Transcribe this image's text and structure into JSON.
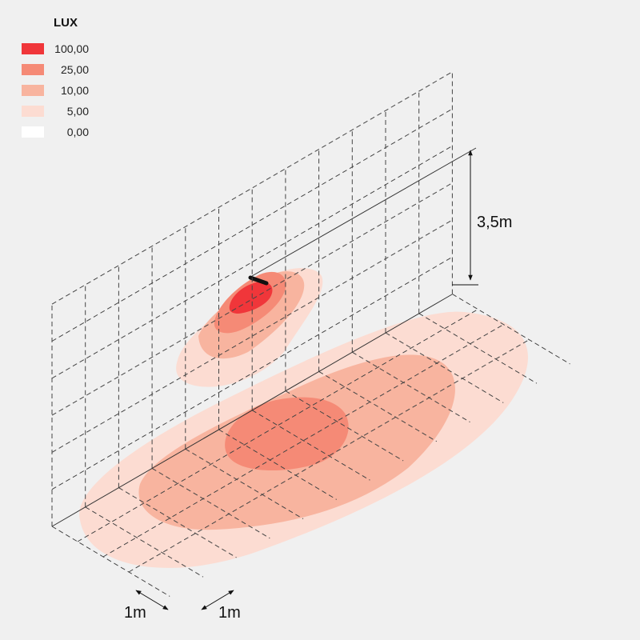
{
  "legend": {
    "title": "LUX",
    "items": [
      {
        "label": "100,00",
        "color": "#f0363a"
      },
      {
        "label": "25,00",
        "color": "#f58a76"
      },
      {
        "label": "10,00",
        "color": "#f8b49f"
      },
      {
        "label": "5,00",
        "color": "#fcdcd2"
      },
      {
        "label": "0,00",
        "color": "#ffffff"
      }
    ]
  },
  "dimensions": {
    "height_label": "3,5m",
    "grid_unit_left": "1m",
    "grid_unit_right": "1m"
  }
}
